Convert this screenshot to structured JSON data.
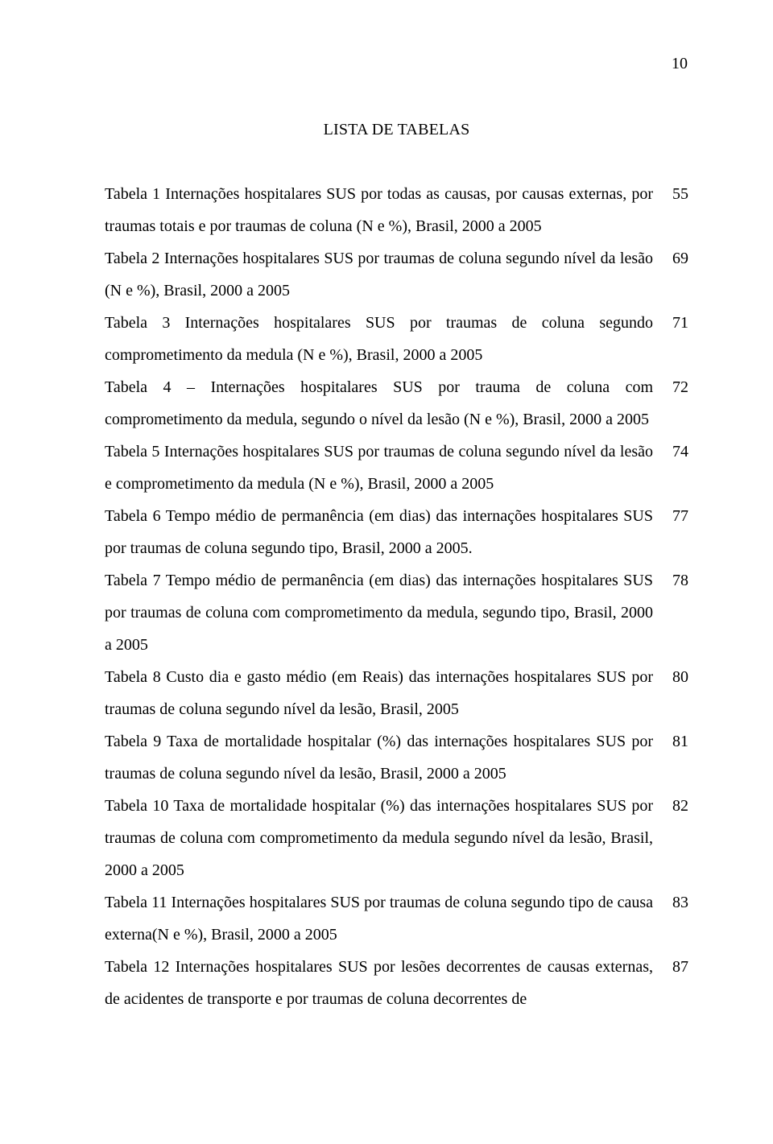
{
  "page_number": "10",
  "heading": "LISTA DE TABELAS",
  "entries": [
    {
      "text": "Tabela 1 Internações hospitalares SUS por todas as causas, por causas externas, por traumas totais e por traumas de coluna (N e %), Brasil, 2000 a 2005",
      "page": "55"
    },
    {
      "text": "Tabela 2 Internações hospitalares SUS por traumas de coluna segundo nível da lesão (N e %), Brasil, 2000 a 2005",
      "page": "69"
    },
    {
      "text": "Tabela 3 Internações hospitalares SUS por traumas de coluna segundo comprometimento da medula (N e %), Brasil, 2000 a 2005",
      "page": "71"
    },
    {
      "text": "Tabela 4 – Internações hospitalares SUS por trauma de coluna com comprometimento da medula, segundo o nível da lesão (N e %), Brasil, 2000 a 2005",
      "page": "72"
    },
    {
      "text": "Tabela 5 Internações hospitalares SUS por traumas de coluna segundo nível da lesão e comprometimento da medula (N e %), Brasil, 2000 a 2005",
      "page": "74"
    },
    {
      "text": "Tabela 6 Tempo médio de permanência (em dias) das internações hospitalares SUS por traumas de coluna segundo tipo, Brasil, 2000 a 2005.",
      "page": "77"
    },
    {
      "text": "Tabela 7 Tempo médio de permanência (em dias) das internações hospitalares SUS por traumas de coluna com comprometimento da medula, segundo tipo, Brasil, 2000 a 2005",
      "page": "78"
    },
    {
      "text": "Tabela 8 Custo dia e gasto médio (em Reais) das internações hospitalares SUS por traumas de coluna segundo nível da lesão, Brasil, 2005",
      "page": "80"
    },
    {
      "text": "Tabela 9 Taxa de mortalidade hospitalar (%) das internações hospitalares SUS por traumas de coluna segundo nível da lesão, Brasil, 2000 a 2005",
      "page": "81"
    },
    {
      "text": "Tabela 10 Taxa de mortalidade hospitalar (%) das internações hospitalares SUS por traumas de coluna com comprometimento da medula segundo nível da lesão, Brasil, 2000 a 2005",
      "page": "82"
    },
    {
      "text": "Tabela 11 Internações hospitalares SUS por traumas de coluna segundo tipo de causa externa(N e %), Brasil, 2000 a 2005",
      "page": "83"
    },
    {
      "text": "Tabela 12 Internações hospitalares SUS por lesões decorrentes de causas externas, de acidentes de transporte e por traumas de coluna decorrentes de",
      "page": "87"
    }
  ]
}
